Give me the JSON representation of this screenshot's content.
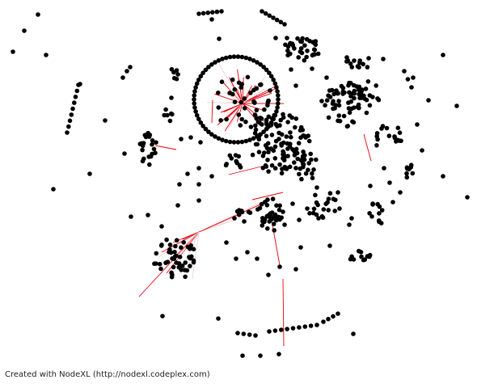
{
  "credit": "Created with NodeXL (http://nodexl.codeplex.com)",
  "colors": {
    "background": "#ffffff",
    "node": "#000000",
    "edge": "#e8000c",
    "edge_faint": "#f3b8bc"
  }
}
